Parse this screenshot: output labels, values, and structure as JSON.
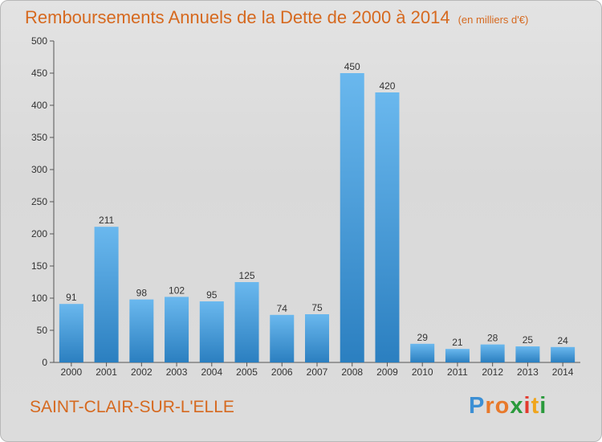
{
  "header": {
    "title": "Remboursements Annuels de la Dette de 2000 à 2014",
    "subtitle": "(en milliers d'€)"
  },
  "footer": {
    "commune": "SAINT-CLAIR-SUR-L'ELLE",
    "logo": {
      "letters": [
        "P",
        "r",
        "o",
        "x",
        "i",
        "t",
        "i"
      ],
      "colors": [
        "#3c8fd4",
        "#e8792b",
        "#e8792b",
        "#2a9a3c",
        "#e33a2e",
        "#f0a51c",
        "#2a9a3c"
      ]
    }
  },
  "colors": {
    "bar_light": "#6ab8ee",
    "bar_dark": "#2b7fc0",
    "title": "#d6691f"
  },
  "chart_data": {
    "type": "bar",
    "title": "Remboursements Annuels de la Dette de 2000 à 2014",
    "categories": [
      "2000",
      "2001",
      "2002",
      "2003",
      "2004",
      "2005",
      "2006",
      "2007",
      "2008",
      "2009",
      "2010",
      "2011",
      "2012",
      "2013",
      "2014"
    ],
    "values": [
      91,
      211,
      98,
      102,
      95,
      125,
      74,
      75,
      450,
      420,
      29,
      21,
      28,
      25,
      24
    ],
    "ylim": [
      0,
      500
    ],
    "yticks": [
      0,
      50,
      100,
      150,
      200,
      250,
      300,
      350,
      400,
      450,
      500
    ],
    "grid": false,
    "data_labels": true
  }
}
